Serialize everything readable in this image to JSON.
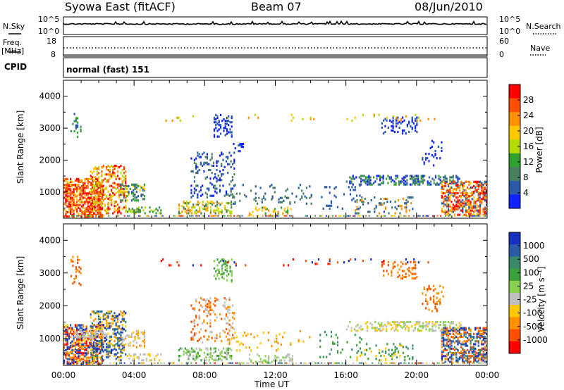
{
  "header": {
    "station": "Syowa East (fitACF)",
    "beam": "Beam 07",
    "date": "08/Jun/2010"
  },
  "top_panels": {
    "nsky_label": "N.Sky",
    "nsky_ticks": [
      "10^5",
      "10^0"
    ],
    "nsearch_label": "N.Search",
    "freq_label_1": "Freq.",
    "freq_label_2": "[MHz]",
    "freq_ticks": [
      "18",
      "8"
    ],
    "nave_label": "Nave",
    "nave_ticks": [
      "60",
      "0"
    ],
    "cpid_label": "CPID",
    "cpid_value": "normal (fast) 151"
  },
  "chart_data": [
    {
      "type": "heatmap",
      "title": "",
      "ylabel": "Slant Range [km]",
      "xlabel": "",
      "y_ticks": [
        "1000",
        "2000",
        "3000",
        "4000"
      ],
      "ylim": [
        180,
        4500
      ],
      "colorbar": {
        "label": "Power [dB]",
        "ticks": [
          "28",
          "24",
          "20",
          "16",
          "12",
          "8",
          "4"
        ],
        "colors": [
          "#ff0000",
          "#ff5000",
          "#ff9000",
          "#ffc800",
          "#b4dc00",
          "#30a030",
          "#4a8060",
          "#2a5aa8",
          "#1020ff"
        ]
      }
    },
    {
      "type": "heatmap",
      "title": "",
      "ylabel": "Slant Range [km]",
      "xlabel": "Time UT",
      "x_ticks": [
        "00:00",
        "04:00",
        "08:00",
        "12:00",
        "16:00",
        "20:00",
        "00:00"
      ],
      "y_ticks": [
        "1000",
        "2000",
        "3000",
        "4000"
      ],
      "ylim": [
        180,
        4500
      ],
      "colorbar": {
        "label": "Velocity [m s⁻¹]",
        "ticks": [
          "1000",
          "500",
          "100",
          "25",
          "-25",
          "-100",
          "-500",
          "-1000"
        ],
        "colors": [
          "#1830c0",
          "#2a5aa8",
          "#3a8a6a",
          "#3ca03c",
          "#8cd050",
          "#c0c0c0",
          "#ffc800",
          "#ff9000",
          "#ff5000",
          "#ff0000"
        ]
      }
    }
  ]
}
